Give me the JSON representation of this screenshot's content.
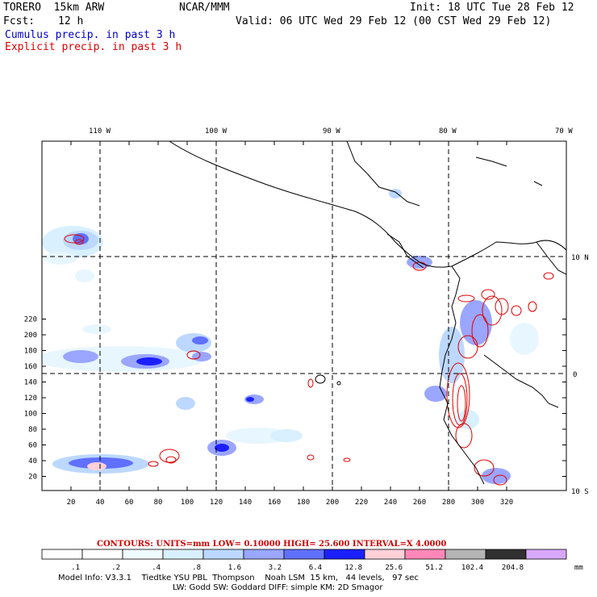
{
  "header": {
    "model": "TORERO  15km ARW",
    "org": "NCAR/MMM",
    "init": "Init: 18 UTC Tue 28 Feb 12",
    "fcst_label": "Fcst:",
    "fcst_value": "12 h",
    "valid": "Valid: 06 UTC Wed 29 Feb 12 (00 CST Wed 29 Feb 12)",
    "line_cumulus": "Cumulus precip. in past 3 h",
    "line_explicit": "Explicit precip. in past 3 h"
  },
  "map": {
    "lon_labels": [
      "110 W",
      "100 W",
      "90 W",
      "80 W",
      "70 W"
    ],
    "lat_labels": [
      "10 N",
      "0",
      "10 S"
    ],
    "x_ticks": [
      "20",
      "40",
      "60",
      "80",
      "100",
      "120",
      "140",
      "160",
      "180",
      "200",
      "220",
      "240",
      "260",
      "280",
      "300",
      "320"
    ],
    "y_ticks": [
      "220",
      "200",
      "180",
      "160",
      "140",
      "120",
      "100",
      "80",
      "60",
      "40",
      "20"
    ]
  },
  "legend": {
    "contours_note": "CONTOURS:  UNITS=mm  LOW= 0.10000      HIGH=  25.600      INTERVAL=X  4.0000",
    "values": [
      ".1",
      ".2",
      ".4",
      ".8",
      "1.6",
      "3.2",
      "6.4",
      "12.8",
      "25.6",
      "51.2",
      "102.4",
      "204.8"
    ],
    "unit": "mm",
    "colors": [
      "#ffffff",
      "#ffffff",
      "#f0fbff",
      "#d8f0ff",
      "#bcd8ff",
      "#9aa6ff",
      "#6070ff",
      "#1a20ff",
      "#ffd0d8",
      "#ff88b8",
      "#b4b4b4",
      "#303030",
      "#d8a8ff"
    ]
  },
  "footer": {
    "line1": "Model Info: V3.3.1    Tiedtke YSU PBL  Thompson    Noah LSM  15 km,   44 levels,   97 sec",
    "line2": "LW: Godd SW: Goddard DIFF: simple KM: 2D Smagor"
  }
}
